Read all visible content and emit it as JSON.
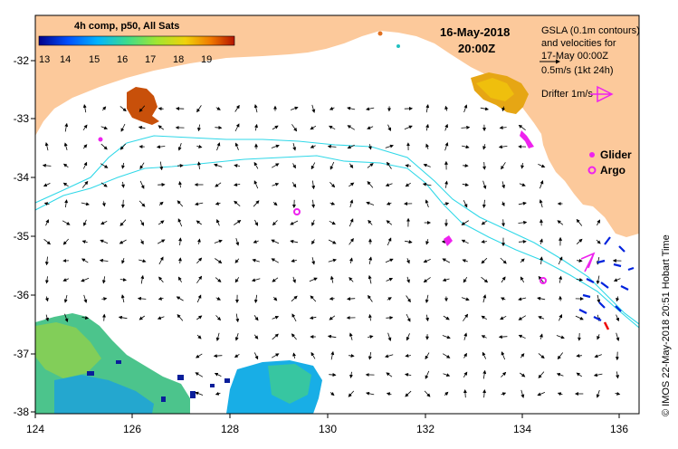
{
  "colorbar": {
    "title": "4h comp, p50, All Sats",
    "ticks": [
      "13",
      "14",
      "15",
      "16",
      "17",
      "18",
      "19"
    ],
    "colors": [
      "#00008b",
      "#0050ff",
      "#00b4ff",
      "#3cdc8c",
      "#a0e632",
      "#f0d20a",
      "#f07800",
      "#b41400"
    ]
  },
  "timestamp": {
    "date": "16-May-2018",
    "time": "20:00Z"
  },
  "info": {
    "lines": [
      "GSLA (0.1m contours)",
      "and velocities for",
      "17-May 00:00Z"
    ],
    "scale_label": "0.5m/s (1kt 24h)",
    "drifter_label": "Drifter 1m/s"
  },
  "legend": {
    "glider": "Glider",
    "argo": "Argo"
  },
  "credit": "© IMOS 22-May-2018 20:51 Hobart Time",
  "axes": {
    "x_ticks": [
      "124",
      "126",
      "128",
      "130",
      "132",
      "134",
      "136"
    ],
    "y_ticks": [
      "-32",
      "-33",
      "-34",
      "-35",
      "-36",
      "-37",
      "-38"
    ]
  },
  "colors": {
    "land": "#fcc99b",
    "gsla_contour": "#30d8e8",
    "marker": "#ee22ee",
    "drifter_blue": "#0022dd",
    "drifter_red": "#ee0000"
  }
}
